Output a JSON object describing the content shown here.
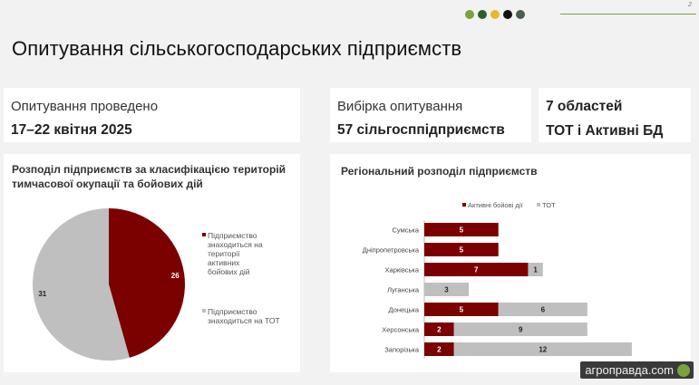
{
  "page_number": "2",
  "decor": {
    "dot_colors": [
      "#7ba23f",
      "#2e5e2a",
      "#e8b92f",
      "#111111",
      "#4b5e50"
    ]
  },
  "title": "Опитування сільськогосподарських підприємств",
  "info": {
    "survey": {
      "label": "Опитування проведено",
      "value": "17–22 квітня 2025"
    },
    "sample": {
      "label": "Вибірка опитування",
      "value": "57 сільгосппідприємств"
    },
    "regions": {
      "label": "7 областей",
      "value": "ТОТ і Активні БД"
    }
  },
  "pie_title": "Розподіл підприємств за класифікацією територій тимчасової окупації та бойових дій",
  "bar_title": "Регіональний розподіл підприємств",
  "watermark": "агроправда.com",
  "chart_data": [
    {
      "type": "pie",
      "labels": [
        "Підприємство знаходиться на території активних бойових дій",
        "Підприємство знаходиться на ТОТ"
      ],
      "values": [
        26,
        31
      ],
      "colors": [
        "#7b0000",
        "#bfbfbf"
      ],
      "legend_position": "right"
    },
    {
      "type": "bar",
      "orientation": "horizontal",
      "stacked": true,
      "categories": [
        "Сумська",
        "Дніпропетровська",
        "Харківська",
        "Луганська",
        "Донецька",
        "Херсонська",
        "Запорізька"
      ],
      "series": [
        {
          "name": "Активні бойові дії",
          "color": "#7b0000",
          "values": [
            5,
            5,
            7,
            0,
            5,
            2,
            2
          ]
        },
        {
          "name": "ТОТ",
          "color": "#bfbfbf",
          "values": [
            0,
            0,
            1,
            3,
            6,
            9,
            12
          ]
        }
      ],
      "xlim": [
        0,
        14
      ],
      "legend_position": "top"
    }
  ]
}
